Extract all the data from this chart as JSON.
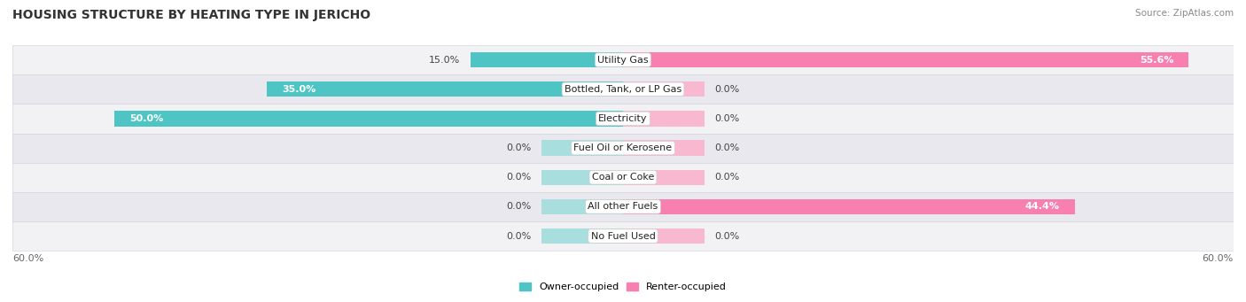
{
  "title": "HOUSING STRUCTURE BY HEATING TYPE IN JERICHO",
  "source": "Source: ZipAtlas.com",
  "categories": [
    "Utility Gas",
    "Bottled, Tank, or LP Gas",
    "Electricity",
    "Fuel Oil or Kerosene",
    "Coal or Coke",
    "All other Fuels",
    "No Fuel Used"
  ],
  "owner_values": [
    15.0,
    35.0,
    50.0,
    0.0,
    0.0,
    0.0,
    0.0
  ],
  "renter_values": [
    55.6,
    0.0,
    0.0,
    0.0,
    0.0,
    44.4,
    0.0
  ],
  "owner_color": "#4ec4c4",
  "renter_color": "#f780b0",
  "owner_color_zero": "#a8dede",
  "renter_color_zero": "#f8b8d0",
  "axis_min": -60.0,
  "axis_max": 60.0,
  "zero_bar_size": 8.0,
  "bar_height": 0.52,
  "row_colors": [
    "#f2f2f4",
    "#e8e8ee"
  ],
  "title_fontsize": 10,
  "cat_fontsize": 8,
  "val_fontsize": 8,
  "tick_fontsize": 8,
  "source_fontsize": 7.5,
  "background_color": "#ffffff",
  "row_border_color": "#d8d8e0"
}
